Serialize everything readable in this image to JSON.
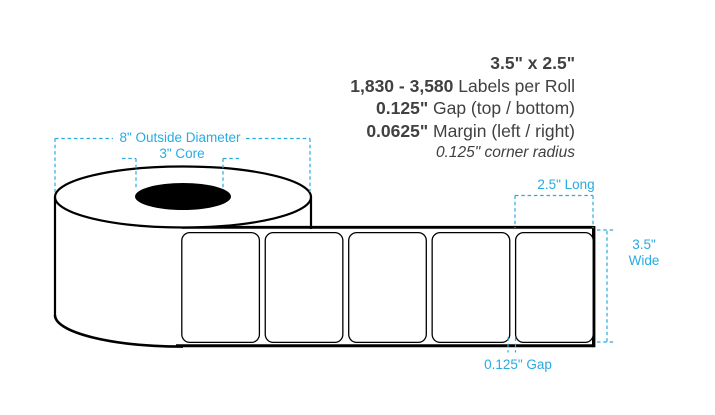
{
  "colors": {
    "accent": "#29ABE2",
    "ink": "#414042",
    "line": "#000000"
  },
  "spec": {
    "size": "3.5\" x 2.5\"",
    "labels_count": "1,830 - 3,580",
    "labels_suffix": " Labels per Roll",
    "gap_value": "0.125\"",
    "gap_suffix": " Gap (top / bottom)",
    "margin_value": "0.0625\"",
    "margin_suffix": " Margin (left / right)",
    "corner_radius_note": "0.125\" corner radius"
  },
  "roll_annotations": {
    "outside_diameter": "8\" Outside Diameter",
    "core": "3\" Core"
  },
  "strip_annotations": {
    "long": "2.5\" Long",
    "wide_line1": "3.5\"",
    "wide_line2": "Wide",
    "gap": "0.125\" Gap"
  },
  "strip": {
    "label_count": 5
  }
}
